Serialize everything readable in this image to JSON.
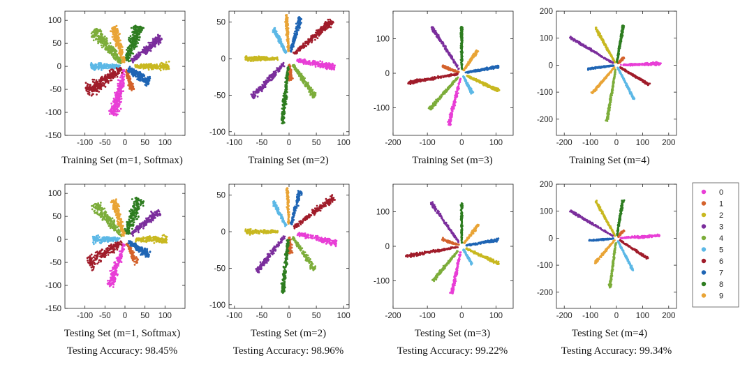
{
  "colors": [
    "#e83ed6",
    "#d4622c",
    "#c8b820",
    "#7b2e9c",
    "#7cad3a",
    "#5cb8e6",
    "#a01c2a",
    "#1f65b4",
    "#2e7d20",
    "#e9a436"
  ],
  "legend": [
    "0",
    "1",
    "2",
    "3",
    "4",
    "5",
    "6",
    "7",
    "8",
    "9"
  ],
  "chart_data": [
    {
      "type": "scatter",
      "title": "Training Set (m=1, Softmax)",
      "row": 0,
      "col": 0,
      "xlim": [
        -150,
        150
      ],
      "ylim": [
        -150,
        120
      ],
      "xticks": [
        -100,
        -50,
        0,
        50,
        100
      ],
      "yticks": [
        -150,
        -100,
        -50,
        0,
        50,
        100
      ],
      "clusters": [
        {
          "digit": 0,
          "angle": 255,
          "r_min": 8,
          "r_max": 110,
          "width": 18,
          "n": 260
        },
        {
          "digit": 1,
          "angle": 290,
          "r_min": 8,
          "r_max": 55,
          "width": 10,
          "n": 120
        },
        {
          "digit": 2,
          "angle": 0,
          "r_min": 25,
          "r_max": 110,
          "width": 12,
          "n": 220
        },
        {
          "digit": 3,
          "angle": 35,
          "r_min": 20,
          "r_max": 110,
          "width": 14,
          "n": 220
        },
        {
          "digit": 4,
          "angle": 135,
          "r_min": 10,
          "r_max": 110,
          "width": 20,
          "n": 280
        },
        {
          "digit": 5,
          "angle": 180,
          "r_min": 12,
          "r_max": 85,
          "width": 12,
          "n": 200
        },
        {
          "digit": 6,
          "angle": 210,
          "r_min": 10,
          "r_max": 110,
          "width": 22,
          "n": 280
        },
        {
          "digit": 7,
          "angle": 330,
          "r_min": 10,
          "r_max": 70,
          "width": 16,
          "n": 220
        },
        {
          "digit": 8,
          "angle": 68,
          "r_min": 12,
          "r_max": 95,
          "width": 20,
          "n": 260
        },
        {
          "digit": 9,
          "angle": 108,
          "r_min": 8,
          "r_max": 90,
          "width": 14,
          "n": 240
        }
      ]
    },
    {
      "type": "scatter",
      "title": "Training Set (m=2)",
      "row": 0,
      "col": 1,
      "xlim": [
        -110,
        110
      ],
      "ylim": [
        -105,
        65
      ],
      "xticks": [
        -100,
        -50,
        0,
        50,
        100
      ],
      "yticks": [
        -100,
        -50,
        0,
        50
      ],
      "clusters": [
        {
          "digit": 0,
          "angle": 352,
          "r_min": 15,
          "r_max": 85,
          "width": 7,
          "n": 200
        },
        {
          "digit": 1,
          "angle": 275,
          "r_min": 8,
          "r_max": 30,
          "width": 6,
          "n": 80
        },
        {
          "digit": 2,
          "angle": 180,
          "r_min": 20,
          "r_max": 80,
          "width": 5,
          "n": 200
        },
        {
          "digit": 3,
          "angle": 218,
          "r_min": 10,
          "r_max": 85,
          "width": 7,
          "n": 200
        },
        {
          "digit": 4,
          "angle": 312,
          "r_min": 10,
          "r_max": 70,
          "width": 6,
          "n": 180
        },
        {
          "digit": 5,
          "angle": 125,
          "r_min": 10,
          "r_max": 50,
          "width": 5,
          "n": 150
        },
        {
          "digit": 6,
          "angle": 33,
          "r_min": 10,
          "r_max": 95,
          "width": 8,
          "n": 220
        },
        {
          "digit": 7,
          "angle": 70,
          "r_min": 10,
          "r_max": 60,
          "width": 6,
          "n": 160
        },
        {
          "digit": 8,
          "angle": 262,
          "r_min": 10,
          "r_max": 90,
          "width": 6,
          "n": 220
        },
        {
          "digit": 9,
          "angle": 95,
          "r_min": 10,
          "r_max": 60,
          "width": 4,
          "n": 150
        }
      ]
    },
    {
      "type": "scatter",
      "title": "Training Set (m=3)",
      "row": 0,
      "col": 2,
      "xlim": [
        -200,
        150
      ],
      "ylim": [
        -180,
        180
      ],
      "xticks": [
        -200,
        -100,
        0,
        100
      ],
      "yticks": [
        -100,
        0,
        100
      ],
      "clusters": [
        {
          "digit": 0,
          "angle": 256,
          "r_min": 15,
          "r_max": 155,
          "width": 7,
          "n": 200
        },
        {
          "digit": 1,
          "angle": 160,
          "r_min": 8,
          "r_max": 60,
          "width": 6,
          "n": 100
        },
        {
          "digit": 2,
          "angle": 335,
          "r_min": 15,
          "r_max": 120,
          "width": 7,
          "n": 200
        },
        {
          "digit": 3,
          "angle": 123,
          "r_min": 15,
          "r_max": 160,
          "width": 6,
          "n": 200
        },
        {
          "digit": 4,
          "angle": 228,
          "r_min": 15,
          "r_max": 140,
          "width": 7,
          "n": 200
        },
        {
          "digit": 5,
          "angle": 298,
          "r_min": 10,
          "r_max": 65,
          "width": 5,
          "n": 120
        },
        {
          "digit": 6,
          "angle": 190,
          "r_min": 10,
          "r_max": 160,
          "width": 7,
          "n": 220
        },
        {
          "digit": 7,
          "angle": 10,
          "r_min": 10,
          "r_max": 110,
          "width": 6,
          "n": 180
        },
        {
          "digit": 8,
          "angle": 90,
          "r_min": 10,
          "r_max": 135,
          "width": 5,
          "n": 200
        },
        {
          "digit": 9,
          "angle": 55,
          "r_min": 10,
          "r_max": 80,
          "width": 6,
          "n": 140
        }
      ]
    },
    {
      "type": "scatter",
      "title": "Training Set (m=4)",
      "row": 0,
      "col": 3,
      "xlim": [
        -230,
        230
      ],
      "ylim": [
        -260,
        200
      ],
      "xticks": [
        -200,
        -100,
        0,
        100,
        200
      ],
      "yticks": [
        -200,
        -100,
        0,
        100,
        200
      ],
      "clusters": [
        {
          "digit": 0,
          "angle": 2,
          "r_min": 15,
          "r_max": 170,
          "width": 8,
          "n": 200
        },
        {
          "digit": 1,
          "angle": 45,
          "r_min": 8,
          "r_max": 40,
          "width": 6,
          "n": 80
        },
        {
          "digit": 2,
          "angle": 120,
          "r_min": 10,
          "r_max": 160,
          "width": 6,
          "n": 200
        },
        {
          "digit": 3,
          "angle": 150,
          "r_min": 15,
          "r_max": 205,
          "width": 6,
          "n": 220
        },
        {
          "digit": 4,
          "angle": 260,
          "r_min": 15,
          "r_max": 210,
          "width": 6,
          "n": 220
        },
        {
          "digit": 5,
          "angle": 298,
          "r_min": 10,
          "r_max": 145,
          "width": 5,
          "n": 180
        },
        {
          "digit": 6,
          "angle": 330,
          "r_min": 15,
          "r_max": 145,
          "width": 6,
          "n": 180
        },
        {
          "digit": 7,
          "angle": 187,
          "r_min": 10,
          "r_max": 110,
          "width": 5,
          "n": 160
        },
        {
          "digit": 8,
          "angle": 80,
          "r_min": 10,
          "r_max": 150,
          "width": 6,
          "n": 200
        },
        {
          "digit": 9,
          "angle": 228,
          "r_min": 10,
          "r_max": 140,
          "width": 6,
          "n": 180
        }
      ]
    },
    {
      "type": "scatter",
      "title": "Testing Set (m=1, Softmax)",
      "row": 1,
      "col": 0,
      "xlim": [
        -150,
        150
      ],
      "ylim": [
        -150,
        120
      ],
      "xticks": [
        -100,
        -50,
        0,
        50,
        100
      ],
      "yticks": [
        -150,
        -100,
        -50,
        0,
        50,
        100
      ],
      "clusters": [
        {
          "digit": 0,
          "angle": 250,
          "r_min": 10,
          "r_max": 110,
          "width": 16,
          "n": 180
        },
        {
          "digit": 1,
          "angle": 300,
          "r_min": 10,
          "r_max": 60,
          "width": 10,
          "n": 90
        },
        {
          "digit": 2,
          "angle": 0,
          "r_min": 25,
          "r_max": 105,
          "width": 12,
          "n": 160
        },
        {
          "digit": 3,
          "angle": 35,
          "r_min": 20,
          "r_max": 105,
          "width": 14,
          "n": 160
        },
        {
          "digit": 4,
          "angle": 135,
          "r_min": 10,
          "r_max": 110,
          "width": 20,
          "n": 200
        },
        {
          "digit": 5,
          "angle": 180,
          "r_min": 12,
          "r_max": 80,
          "width": 12,
          "n": 150
        },
        {
          "digit": 6,
          "angle": 210,
          "r_min": 10,
          "r_max": 105,
          "width": 22,
          "n": 200
        },
        {
          "digit": 7,
          "angle": 330,
          "r_min": 10,
          "r_max": 70,
          "width": 16,
          "n": 160
        },
        {
          "digit": 8,
          "angle": 68,
          "r_min": 12,
          "r_max": 95,
          "width": 20,
          "n": 190
        },
        {
          "digit": 9,
          "angle": 108,
          "r_min": 8,
          "r_max": 90,
          "width": 14,
          "n": 180
        }
      ]
    },
    {
      "type": "scatter",
      "title": "Testing Set (m=2)",
      "row": 1,
      "col": 1,
      "xlim": [
        -110,
        110
      ],
      "ylim": [
        -105,
        65
      ],
      "xticks": [
        -100,
        -50,
        0,
        50,
        100
      ],
      "yticks": [
        -100,
        -50,
        0,
        50
      ],
      "clusters": [
        {
          "digit": 0,
          "angle": 350,
          "r_min": 15,
          "r_max": 88,
          "width": 7,
          "n": 160
        },
        {
          "digit": 1,
          "angle": 275,
          "r_min": 8,
          "r_max": 30,
          "width": 6,
          "n": 60
        },
        {
          "digit": 2,
          "angle": 180,
          "r_min": 20,
          "r_max": 80,
          "width": 5,
          "n": 150
        },
        {
          "digit": 3,
          "angle": 222,
          "r_min": 10,
          "r_max": 80,
          "width": 7,
          "n": 150
        },
        {
          "digit": 4,
          "angle": 312,
          "r_min": 10,
          "r_max": 70,
          "width": 6,
          "n": 140
        },
        {
          "digit": 5,
          "angle": 125,
          "r_min": 10,
          "r_max": 50,
          "width": 5,
          "n": 110
        },
        {
          "digit": 6,
          "angle": 30,
          "r_min": 10,
          "r_max": 95,
          "width": 8,
          "n": 170
        },
        {
          "digit": 7,
          "angle": 70,
          "r_min": 10,
          "r_max": 60,
          "width": 6,
          "n": 120
        },
        {
          "digit": 8,
          "angle": 262,
          "r_min": 10,
          "r_max": 85,
          "width": 6,
          "n": 170
        },
        {
          "digit": 9,
          "angle": 93,
          "r_min": 10,
          "r_max": 60,
          "width": 4,
          "n": 110
        }
      ]
    },
    {
      "type": "scatter",
      "title": "Testing Set (m=3)",
      "row": 1,
      "col": 2,
      "xlim": [
        -200,
        150
      ],
      "ylim": [
        -180,
        180
      ],
      "xticks": [
        -200,
        -100,
        0,
        100
      ],
      "yticks": [
        -100,
        0,
        100
      ],
      "clusters": [
        {
          "digit": 0,
          "angle": 258,
          "r_min": 15,
          "r_max": 140,
          "width": 7,
          "n": 150
        },
        {
          "digit": 1,
          "angle": 160,
          "r_min": 8,
          "r_max": 60,
          "width": 6,
          "n": 80
        },
        {
          "digit": 2,
          "angle": 335,
          "r_min": 15,
          "r_max": 120,
          "width": 7,
          "n": 150
        },
        {
          "digit": 3,
          "angle": 125,
          "r_min": 15,
          "r_max": 155,
          "width": 6,
          "n": 150
        },
        {
          "digit": 4,
          "angle": 230,
          "r_min": 15,
          "r_max": 130,
          "width": 7,
          "n": 150
        },
        {
          "digit": 5,
          "angle": 300,
          "r_min": 10,
          "r_max": 60,
          "width": 5,
          "n": 90
        },
        {
          "digit": 6,
          "angle": 190,
          "r_min": 10,
          "r_max": 165,
          "width": 7,
          "n": 170
        },
        {
          "digit": 7,
          "angle": 10,
          "r_min": 10,
          "r_max": 110,
          "width": 6,
          "n": 140
        },
        {
          "digit": 8,
          "angle": 90,
          "r_min": 10,
          "r_max": 125,
          "width": 5,
          "n": 150
        },
        {
          "digit": 9,
          "angle": 52,
          "r_min": 10,
          "r_max": 80,
          "width": 6,
          "n": 110
        }
      ]
    },
    {
      "type": "scatter",
      "title": "Testing Set (m=4)",
      "row": 1,
      "col": 3,
      "xlim": [
        -230,
        230
      ],
      "ylim": [
        -260,
        200
      ],
      "xticks": [
        -200,
        -100,
        0,
        100,
        200
      ],
      "yticks": [
        -200,
        -100,
        0,
        100,
        200
      ],
      "clusters": [
        {
          "digit": 0,
          "angle": 3,
          "r_min": 15,
          "r_max": 165,
          "width": 8,
          "n": 160
        },
        {
          "digit": 1,
          "angle": 45,
          "r_min": 8,
          "r_max": 40,
          "width": 6,
          "n": 60
        },
        {
          "digit": 2,
          "angle": 120,
          "r_min": 10,
          "r_max": 160,
          "width": 6,
          "n": 150
        },
        {
          "digit": 3,
          "angle": 150,
          "r_min": 15,
          "r_max": 205,
          "width": 6,
          "n": 170
        },
        {
          "digit": 4,
          "angle": 262,
          "r_min": 15,
          "r_max": 185,
          "width": 6,
          "n": 170
        },
        {
          "digit": 5,
          "angle": 298,
          "r_min": 10,
          "r_max": 135,
          "width": 5,
          "n": 140
        },
        {
          "digit": 6,
          "angle": 328,
          "r_min": 15,
          "r_max": 145,
          "width": 6,
          "n": 140
        },
        {
          "digit": 7,
          "angle": 185,
          "r_min": 10,
          "r_max": 105,
          "width": 5,
          "n": 120
        },
        {
          "digit": 8,
          "angle": 80,
          "r_min": 10,
          "r_max": 145,
          "width": 6,
          "n": 150
        },
        {
          "digit": 9,
          "angle": 228,
          "r_min": 10,
          "r_max": 125,
          "width": 6,
          "n": 140
        }
      ]
    }
  ],
  "accuracies": [
    "Testing Accuracy: 98.45%",
    "Testing Accuracy: 98.96%",
    "Testing Accuracy: 99.22%",
    "Testing Accuracy: 99.34%"
  ]
}
